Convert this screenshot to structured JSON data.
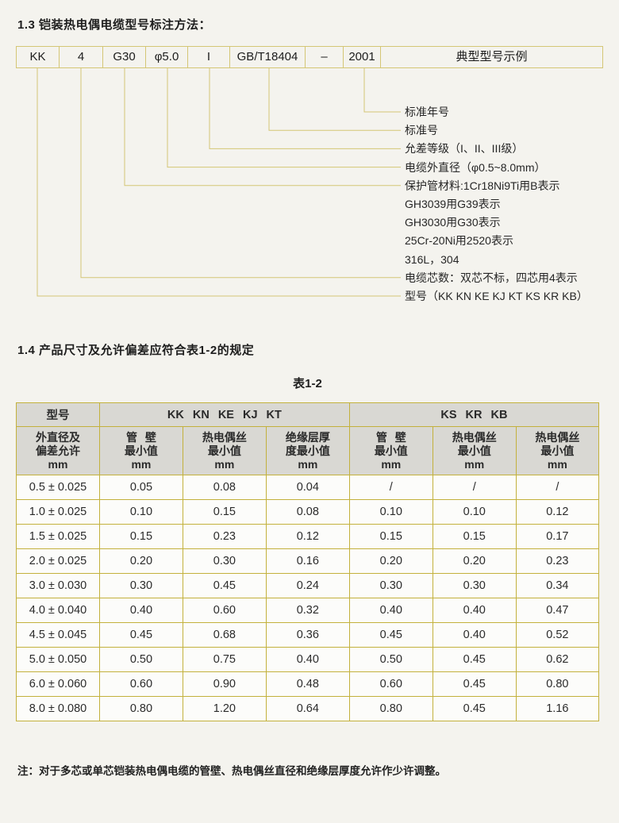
{
  "sections": {
    "s13_title": "1.3 铠装热电偶电缆型号标注方法：",
    "s14_title": "1.4 产品尺寸及允许偏差应符合表1-2的规定",
    "note": "注：对于多芯或单芯铠装热电偶电缆的管壁、热电偶丝直径和绝缘层厚度允许作少许调整。"
  },
  "designation_diagram": {
    "boxes": [
      "KK",
      "4",
      "G30",
      "φ5.0",
      "I",
      "GB/T18404",
      "–",
      "2001",
      "典型型号示例"
    ],
    "callouts": [
      "标准年号",
      "标准号",
      "允差等级（I、II、III级）",
      "电缆外直径（φ0.5~8.0mm）",
      "保护管材料:1Cr18Ni9Ti用B表示",
      "GH3039用G39表示",
      "GH3030用G30表示",
      "25Cr-20Ni用2520表示",
      "316L，304",
      "电缆芯数：双芯不标，四芯用4表示",
      "型号（KK KN KE KJ KT KS KR KB）"
    ]
  },
  "table": {
    "caption": "表1-2",
    "header_row1": {
      "col1": "型号",
      "group1": "KK KN KE KJ KT",
      "group2": "KS KR KB"
    },
    "header_row2": [
      "外直径及\n偏差允许\nmm",
      "管 壁\n最小值\nmm",
      "热电偶丝\n最小值\nmm",
      "绝缘层厚\n度最小值\nmm",
      "管 壁\n最小值\nmm",
      "热电偶丝\n最小值\nmm",
      "热电偶丝\n最小值\nmm"
    ],
    "rows": [
      [
        "0.5 ± 0.025",
        "0.05",
        "0.08",
        "0.04",
        "/",
        "/",
        "/"
      ],
      [
        "1.0 ± 0.025",
        "0.10",
        "0.15",
        "0.08",
        "0.10",
        "0.10",
        "0.12"
      ],
      [
        "1.5 ± 0.025",
        "0.15",
        "0.23",
        "0.12",
        "0.15",
        "0.15",
        "0.17"
      ],
      [
        "2.0 ± 0.025",
        "0.20",
        "0.30",
        "0.16",
        "0.20",
        "0.20",
        "0.23"
      ],
      [
        "3.0 ± 0.030",
        "0.30",
        "0.45",
        "0.24",
        "0.30",
        "0.30",
        "0.34"
      ],
      [
        "4.0 ± 0.040",
        "0.40",
        "0.60",
        "0.32",
        "0.40",
        "0.40",
        "0.47"
      ],
      [
        "4.5 ± 0.045",
        "0.45",
        "0.68",
        "0.36",
        "0.45",
        "0.40",
        "0.52"
      ],
      [
        "5.0 ± 0.050",
        "0.50",
        "0.75",
        "0.40",
        "0.50",
        "0.45",
        "0.62"
      ],
      [
        "6.0 ± 0.060",
        "0.60",
        "0.90",
        "0.48",
        "0.60",
        "0.45",
        "0.80"
      ],
      [
        "8.0 ± 0.080",
        "0.80",
        "1.20",
        "0.64",
        "0.80",
        "0.45",
        "1.16"
      ]
    ]
  },
  "colors": {
    "diagram_line": "#d4c675",
    "table_border": "#c3b13c",
    "header_bg": "#d9d8d3",
    "page_bg": "#f4f3ee"
  }
}
